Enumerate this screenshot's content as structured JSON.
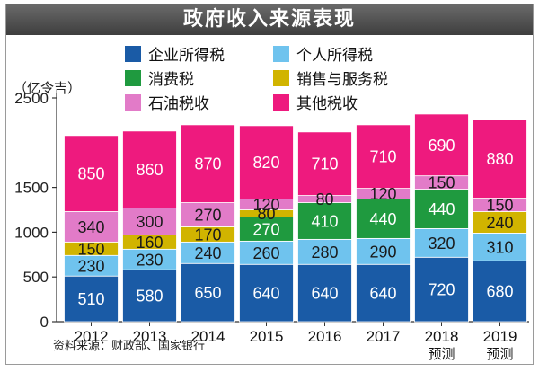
{
  "title": "政府收入来源表现",
  "unit_label": "（亿令吉）",
  "source": "资料来源：财政部、国家银行",
  "legend": [
    {
      "name": "企业所得税",
      "color": "#1a5ba6"
    },
    {
      "name": "个人所得税",
      "color": "#6fc3ee"
    },
    {
      "name": "消费税",
      "color": "#1f9a3f"
    },
    {
      "name": "销售与服务税",
      "color": "#d1b400"
    },
    {
      "name": "石油税收",
      "color": "#e27bc8"
    },
    {
      "name": "其他税收",
      "color": "#ee1a7e"
    }
  ],
  "chart_data": {
    "type": "bar",
    "stacked": true,
    "categories": [
      "2012",
      "2013",
      "2014",
      "2015",
      "2016",
      "2017",
      "2018",
      "2019"
    ],
    "category_sublabels": [
      "",
      "",
      "",
      "",
      "",
      "",
      "预测",
      "预测"
    ],
    "ylim": [
      0,
      2500
    ],
    "yticks": [
      0,
      500,
      1000,
      1500,
      2500
    ],
    "series": [
      {
        "name": "企业所得税",
        "color": "#1a5ba6",
        "label_color": "#ffffff",
        "values": [
          510,
          580,
          650,
          640,
          640,
          640,
          720,
          680
        ]
      },
      {
        "name": "个人所得税",
        "color": "#6fc3ee",
        "label_color": "#1a1a1a",
        "values": [
          230,
          230,
          240,
          260,
          280,
          290,
          320,
          310
        ]
      },
      {
        "name": "消费税",
        "color": "#1f9a3f",
        "label_color": "#ffffff",
        "values": [
          0,
          0,
          0,
          270,
          410,
          440,
          440,
          0
        ]
      },
      {
        "name": "销售与服务税",
        "color": "#d1b400",
        "label_color": "#1a1a1a",
        "values": [
          150,
          160,
          170,
          80,
          0,
          0,
          0,
          240
        ]
      },
      {
        "name": "石油税收",
        "color": "#e27bc8",
        "label_color": "#1a1a1a",
        "values": [
          340,
          300,
          270,
          120,
          80,
          120,
          150,
          150
        ]
      },
      {
        "name": "其他税收",
        "color": "#ee1a7e",
        "label_color": "#ffffff",
        "values": [
          850,
          860,
          870,
          820,
          710,
          710,
          690,
          880
        ]
      }
    ]
  }
}
